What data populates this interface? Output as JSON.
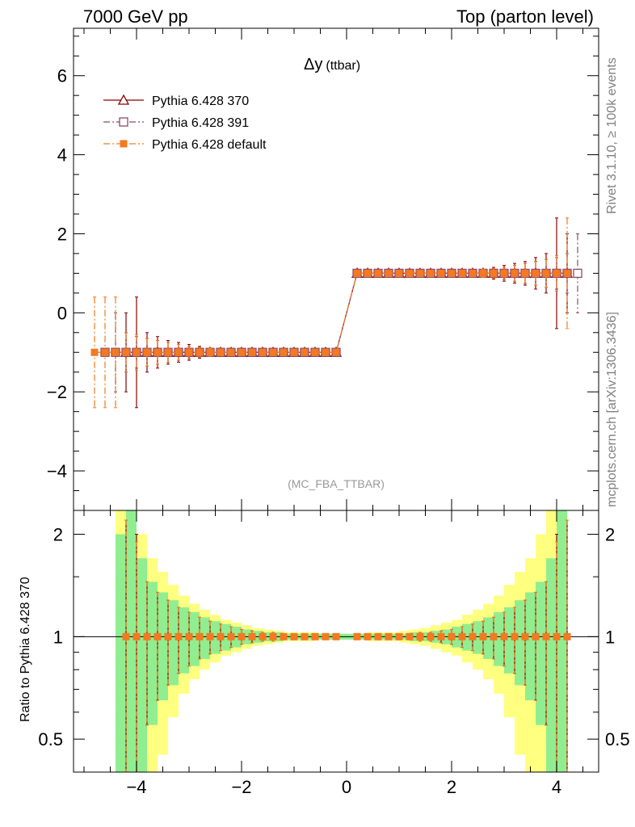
{
  "header": {
    "left": "7000 GeV pp",
    "right": "Top (parton level)"
  },
  "side_notes": {
    "top": "Rivet 3.1.10, ≥ 100k events",
    "bottom": "mcplots.cern.ch [arXiv:1306.3436]"
  },
  "chart_data": [
    {
      "type": "scatter",
      "title": "Δy",
      "title_suffix": "(ttbar)",
      "watermark": "(MC_FBA_TTBAR)",
      "xlabel": "",
      "ylabel": "",
      "xlim": [
        -5.2,
        4.8
      ],
      "ylim": [
        -5.0,
        7.2
      ],
      "x_ticks": [
        -4,
        -2,
        0,
        2,
        4
      ],
      "y_ticks": [
        -4,
        -2,
        0,
        2,
        4,
        6
      ],
      "y_tick_labels": [
        "−4",
        "−2",
        "0",
        "2",
        "4",
        "6"
      ],
      "legend_position": "top-left",
      "series": [
        {
          "name": "Pythia 6.428 370",
          "color": "#8b0000",
          "marker": "triangle-open",
          "line_style": "solid",
          "x": [
            -4.2,
            -4.0,
            -3.8,
            -3.6,
            -3.4,
            -3.2,
            -3.0,
            -2.8,
            -2.6,
            -2.4,
            -2.2,
            -2.0,
            -1.8,
            -1.6,
            -1.4,
            -1.2,
            -1.0,
            -0.8,
            -0.6,
            -0.4,
            -0.2,
            0.2,
            0.4,
            0.6,
            0.8,
            1.0,
            1.2,
            1.4,
            1.6,
            1.8,
            2.0,
            2.2,
            2.4,
            2.6,
            2.8,
            3.0,
            3.2,
            3.4,
            3.6,
            3.8,
            4.0,
            4.2
          ],
          "y": [
            -1,
            -1,
            -1,
            -1,
            -1,
            -1,
            -1,
            -1,
            -1,
            -1,
            -1,
            -1,
            -1,
            -1,
            -1,
            -1,
            -1,
            -1,
            -1,
            -1,
            -1,
            1,
            1,
            1,
            1,
            1,
            1,
            1,
            1,
            1,
            1,
            1,
            1,
            1,
            1,
            1,
            1,
            1,
            1,
            1,
            1,
            1
          ],
          "err": [
            1.0,
            1.4,
            0.5,
            0.4,
            0.3,
            0.25,
            0.2,
            0.15,
            0.1,
            0.08,
            0.06,
            0.05,
            0.04,
            0.03,
            0.03,
            0.03,
            0.02,
            0.02,
            0.02,
            0.02,
            0.02,
            0.02,
            0.02,
            0.02,
            0.02,
            0.02,
            0.03,
            0.03,
            0.03,
            0.04,
            0.05,
            0.06,
            0.08,
            0.1,
            0.15,
            0.2,
            0.25,
            0.3,
            0.4,
            0.5,
            1.4,
            1.0
          ]
        },
        {
          "name": "Pythia 6.428 391",
          "color": "#8b4c6e",
          "marker": "square-open",
          "line_style": "dash-dot",
          "x": [
            -4.6,
            -4.4,
            -4.2,
            -4.0,
            -3.8,
            -3.6,
            -3.4,
            -3.2,
            -3.0,
            -2.8,
            -2.6,
            -2.4,
            -2.2,
            -2.0,
            -1.8,
            -1.6,
            -1.4,
            -1.2,
            -1.0,
            -0.8,
            -0.6,
            -0.4,
            -0.2,
            0.2,
            0.4,
            0.6,
            0.8,
            1.0,
            1.2,
            1.4,
            1.6,
            1.8,
            2.0,
            2.2,
            2.4,
            2.6,
            2.8,
            3.0,
            3.2,
            3.4,
            3.6,
            3.8,
            4.0,
            4.2,
            4.4
          ],
          "y": [
            -1,
            -1,
            -1,
            -1,
            -1,
            -1,
            -1,
            -1,
            -1,
            -1,
            -1,
            -1,
            -1,
            -1,
            -1,
            -1,
            -1,
            -1,
            -1,
            -1,
            -1,
            -1,
            -1,
            1,
            1,
            1,
            1,
            1,
            1,
            1,
            1,
            1,
            1,
            1,
            1,
            1,
            1,
            1,
            1,
            1,
            1,
            1,
            1,
            1,
            1
          ],
          "err": [
            0.0,
            1.0,
            0.5,
            0.4,
            0.35,
            0.3,
            0.25,
            0.2,
            0.15,
            0.12,
            0.1,
            0.08,
            0.06,
            0.05,
            0.04,
            0.03,
            0.03,
            0.03,
            0.02,
            0.02,
            0.02,
            0.02,
            0.02,
            0.02,
            0.02,
            0.02,
            0.02,
            0.02,
            0.03,
            0.03,
            0.03,
            0.04,
            0.05,
            0.06,
            0.08,
            0.1,
            0.12,
            0.15,
            0.2,
            0.25,
            0.3,
            0.35,
            0.4,
            0.5,
            1.0
          ]
        },
        {
          "name": "Pythia 6.428 default",
          "color": "#f47920",
          "marker": "square-filled",
          "line_style": "dash-dot",
          "x": [
            -4.8,
            -4.6,
            -4.4,
            -4.2,
            -4.0,
            -3.8,
            -3.6,
            -3.4,
            -3.2,
            -3.0,
            -2.8,
            -2.6,
            -2.4,
            -2.2,
            -2.0,
            -1.8,
            -1.6,
            -1.4,
            -1.2,
            -1.0,
            -0.8,
            -0.6,
            -0.4,
            -0.2,
            0.2,
            0.4,
            0.6,
            0.8,
            1.0,
            1.2,
            1.4,
            1.6,
            1.8,
            2.0,
            2.2,
            2.4,
            2.6,
            2.8,
            3.0,
            3.2,
            3.4,
            3.6,
            3.8,
            4.0,
            4.2
          ],
          "y": [
            -1,
            -1,
            -1,
            -1,
            -1,
            -1,
            -1,
            -1,
            -1,
            -1,
            -1,
            -1,
            -1,
            -1,
            -1,
            -1,
            -1,
            -1,
            -1,
            -1,
            -1,
            -1,
            -1,
            -1,
            1,
            1,
            1,
            1,
            1,
            1,
            1,
            1,
            1,
            1,
            1,
            1,
            1,
            1,
            1,
            1,
            1,
            1,
            1,
            1,
            1
          ],
          "err": [
            1.4,
            1.4,
            1.4,
            0.5,
            0.45,
            0.35,
            0.3,
            0.25,
            0.2,
            0.15,
            0.12,
            0.1,
            0.08,
            0.06,
            0.05,
            0.04,
            0.03,
            0.03,
            0.03,
            0.02,
            0.02,
            0.02,
            0.02,
            0.02,
            0.02,
            0.02,
            0.02,
            0.02,
            0.02,
            0.03,
            0.03,
            0.03,
            0.04,
            0.05,
            0.06,
            0.08,
            0.1,
            0.12,
            0.15,
            0.2,
            0.25,
            0.3,
            0.35,
            0.45,
            1.4
          ]
        }
      ]
    },
    {
      "type": "scatter",
      "title": "",
      "ylabel": "Ratio to Pythia 6.428 370",
      "xlim": [
        -5.2,
        4.8
      ],
      "ylim": [
        0.4,
        2.35
      ],
      "y_scale": "log",
      "x_ticks": [
        -4,
        -2,
        0,
        2,
        4
      ],
      "x_tick_labels": [
        "−4",
        "−2",
        "0",
        "2",
        "4"
      ],
      "y_ticks": [
        0.5,
        1,
        2
      ],
      "y_tick_labels": [
        "0.5",
        "1",
        "2"
      ],
      "reference_line": 1,
      "band_colors": {
        "inner": "#90ee90",
        "outer": "#ffff80"
      },
      "band_x": [
        -4.3,
        -4.1,
        -3.9,
        -3.7,
        -3.5,
        -3.3,
        -3.1,
        -2.9,
        -2.7,
        -2.5,
        -2.3,
        -2.1,
        -1.9,
        -1.7,
        -1.5,
        -1.3,
        -1.1,
        -0.9,
        -0.7,
        -0.5,
        -0.3,
        -0.1,
        0.1,
        0.3,
        0.5,
        0.7,
        0.9,
        1.1,
        1.3,
        1.5,
        1.7,
        1.9,
        2.1,
        2.3,
        2.5,
        2.7,
        2.9,
        3.1,
        3.3,
        3.5,
        3.7,
        3.9,
        4.1
      ],
      "band_inner": [
        1.0,
        1.4,
        0.7,
        0.45,
        0.35,
        0.28,
        0.22,
        0.18,
        0.14,
        0.11,
        0.09,
        0.07,
        0.05,
        0.04,
        0.03,
        0.03,
        0.02,
        0.02,
        0.02,
        0.02,
        0.02,
        0.02,
        0.02,
        0.02,
        0.02,
        0.02,
        0.02,
        0.02,
        0.03,
        0.03,
        0.04,
        0.05,
        0.07,
        0.09,
        0.11,
        0.14,
        0.18,
        0.22,
        0.28,
        0.35,
        0.45,
        0.7,
        1.4
      ],
      "band_outer": [
        1.4,
        2.0,
        1.0,
        0.7,
        0.55,
        0.42,
        0.32,
        0.25,
        0.2,
        0.16,
        0.12,
        0.1,
        0.08,
        0.06,
        0.05,
        0.04,
        0.03,
        0.03,
        0.03,
        0.02,
        0.02,
        0.02,
        0.02,
        0.02,
        0.03,
        0.03,
        0.03,
        0.04,
        0.05,
        0.06,
        0.08,
        0.1,
        0.12,
        0.16,
        0.2,
        0.25,
        0.32,
        0.42,
        0.55,
        0.7,
        1.0,
        2.0,
        1.4
      ],
      "series": [
        {
          "name": "Pythia 6.428 370",
          "color": "#8b0000",
          "x": [
            -4.2,
            -4.0,
            -3.8,
            -3.6,
            -3.4,
            -3.2,
            -3.0,
            -2.8,
            -2.6,
            -2.4,
            -2.2,
            -2.0,
            -1.8,
            -1.6,
            -1.4,
            -1.2,
            -1.0,
            -0.8,
            -0.6,
            -0.4,
            -0.2,
            0.2,
            0.4,
            0.6,
            0.8,
            1.0,
            1.2,
            1.4,
            1.6,
            1.8,
            2.0,
            2.2,
            2.4,
            2.6,
            2.8,
            3.0,
            3.2,
            3.4,
            3.6,
            3.8,
            4.0,
            4.2
          ],
          "y": [
            1,
            1,
            1,
            1,
            1,
            1,
            1,
            1,
            1,
            1,
            1,
            1,
            1,
            1,
            1,
            1,
            1,
            1,
            1,
            1,
            1,
            1,
            1,
            1,
            1,
            1,
            1,
            1,
            1,
            1,
            1,
            1,
            1,
            1,
            1,
            1,
            1,
            1,
            1,
            1,
            1,
            1
          ],
          "err": [
            1.2,
            1.0,
            0.45,
            0.35,
            0.28,
            0.22,
            0.18,
            0.14,
            0.11,
            0.09,
            0.07,
            0.05,
            0.04,
            0.03,
            0.03,
            0.02,
            0.02,
            0.02,
            0.02,
            0.02,
            0.02,
            0.02,
            0.02,
            0.02,
            0.02,
            0.02,
            0.02,
            0.03,
            0.03,
            0.04,
            0.05,
            0.07,
            0.09,
            0.11,
            0.14,
            0.18,
            0.22,
            0.28,
            0.35,
            0.45,
            1.0,
            1.2
          ]
        },
        {
          "name": "Pythia 6.428 default",
          "color": "#f47920",
          "x": [
            -4.2,
            -4.0,
            -3.8,
            -3.6,
            -3.4,
            -3.2,
            -3.0,
            -2.8,
            -2.6,
            -2.4,
            -2.2,
            -2.0,
            -1.8,
            -1.6,
            -1.4,
            -1.2,
            -1.0,
            -0.8,
            -0.6,
            -0.4,
            -0.2,
            0.2,
            0.4,
            0.6,
            0.8,
            1.0,
            1.2,
            1.4,
            1.6,
            1.8,
            2.0,
            2.2,
            2.4,
            2.6,
            2.8,
            3.0,
            3.2,
            3.4,
            3.6,
            3.8,
            4.0,
            4.2
          ],
          "y": [
            1,
            1,
            1,
            1,
            1,
            1,
            1,
            1,
            1,
            1,
            1,
            1,
            1,
            1,
            1,
            1,
            1,
            1,
            1,
            1,
            1,
            1,
            1,
            1,
            1,
            1,
            1,
            1,
            1,
            1,
            1,
            1,
            1,
            1,
            1,
            1,
            1,
            1,
            1,
            1,
            1,
            1
          ],
          "err": [
            1.2,
            0.9,
            0.45,
            0.35,
            0.28,
            0.22,
            0.18,
            0.14,
            0.11,
            0.09,
            0.07,
            0.05,
            0.04,
            0.03,
            0.03,
            0.02,
            0.02,
            0.02,
            0.02,
            0.02,
            0.02,
            0.02,
            0.02,
            0.02,
            0.02,
            0.02,
            0.02,
            0.03,
            0.03,
            0.04,
            0.05,
            0.07,
            0.09,
            0.11,
            0.14,
            0.18,
            0.22,
            0.28,
            0.35,
            0.45,
            0.9,
            1.2
          ]
        }
      ]
    }
  ]
}
